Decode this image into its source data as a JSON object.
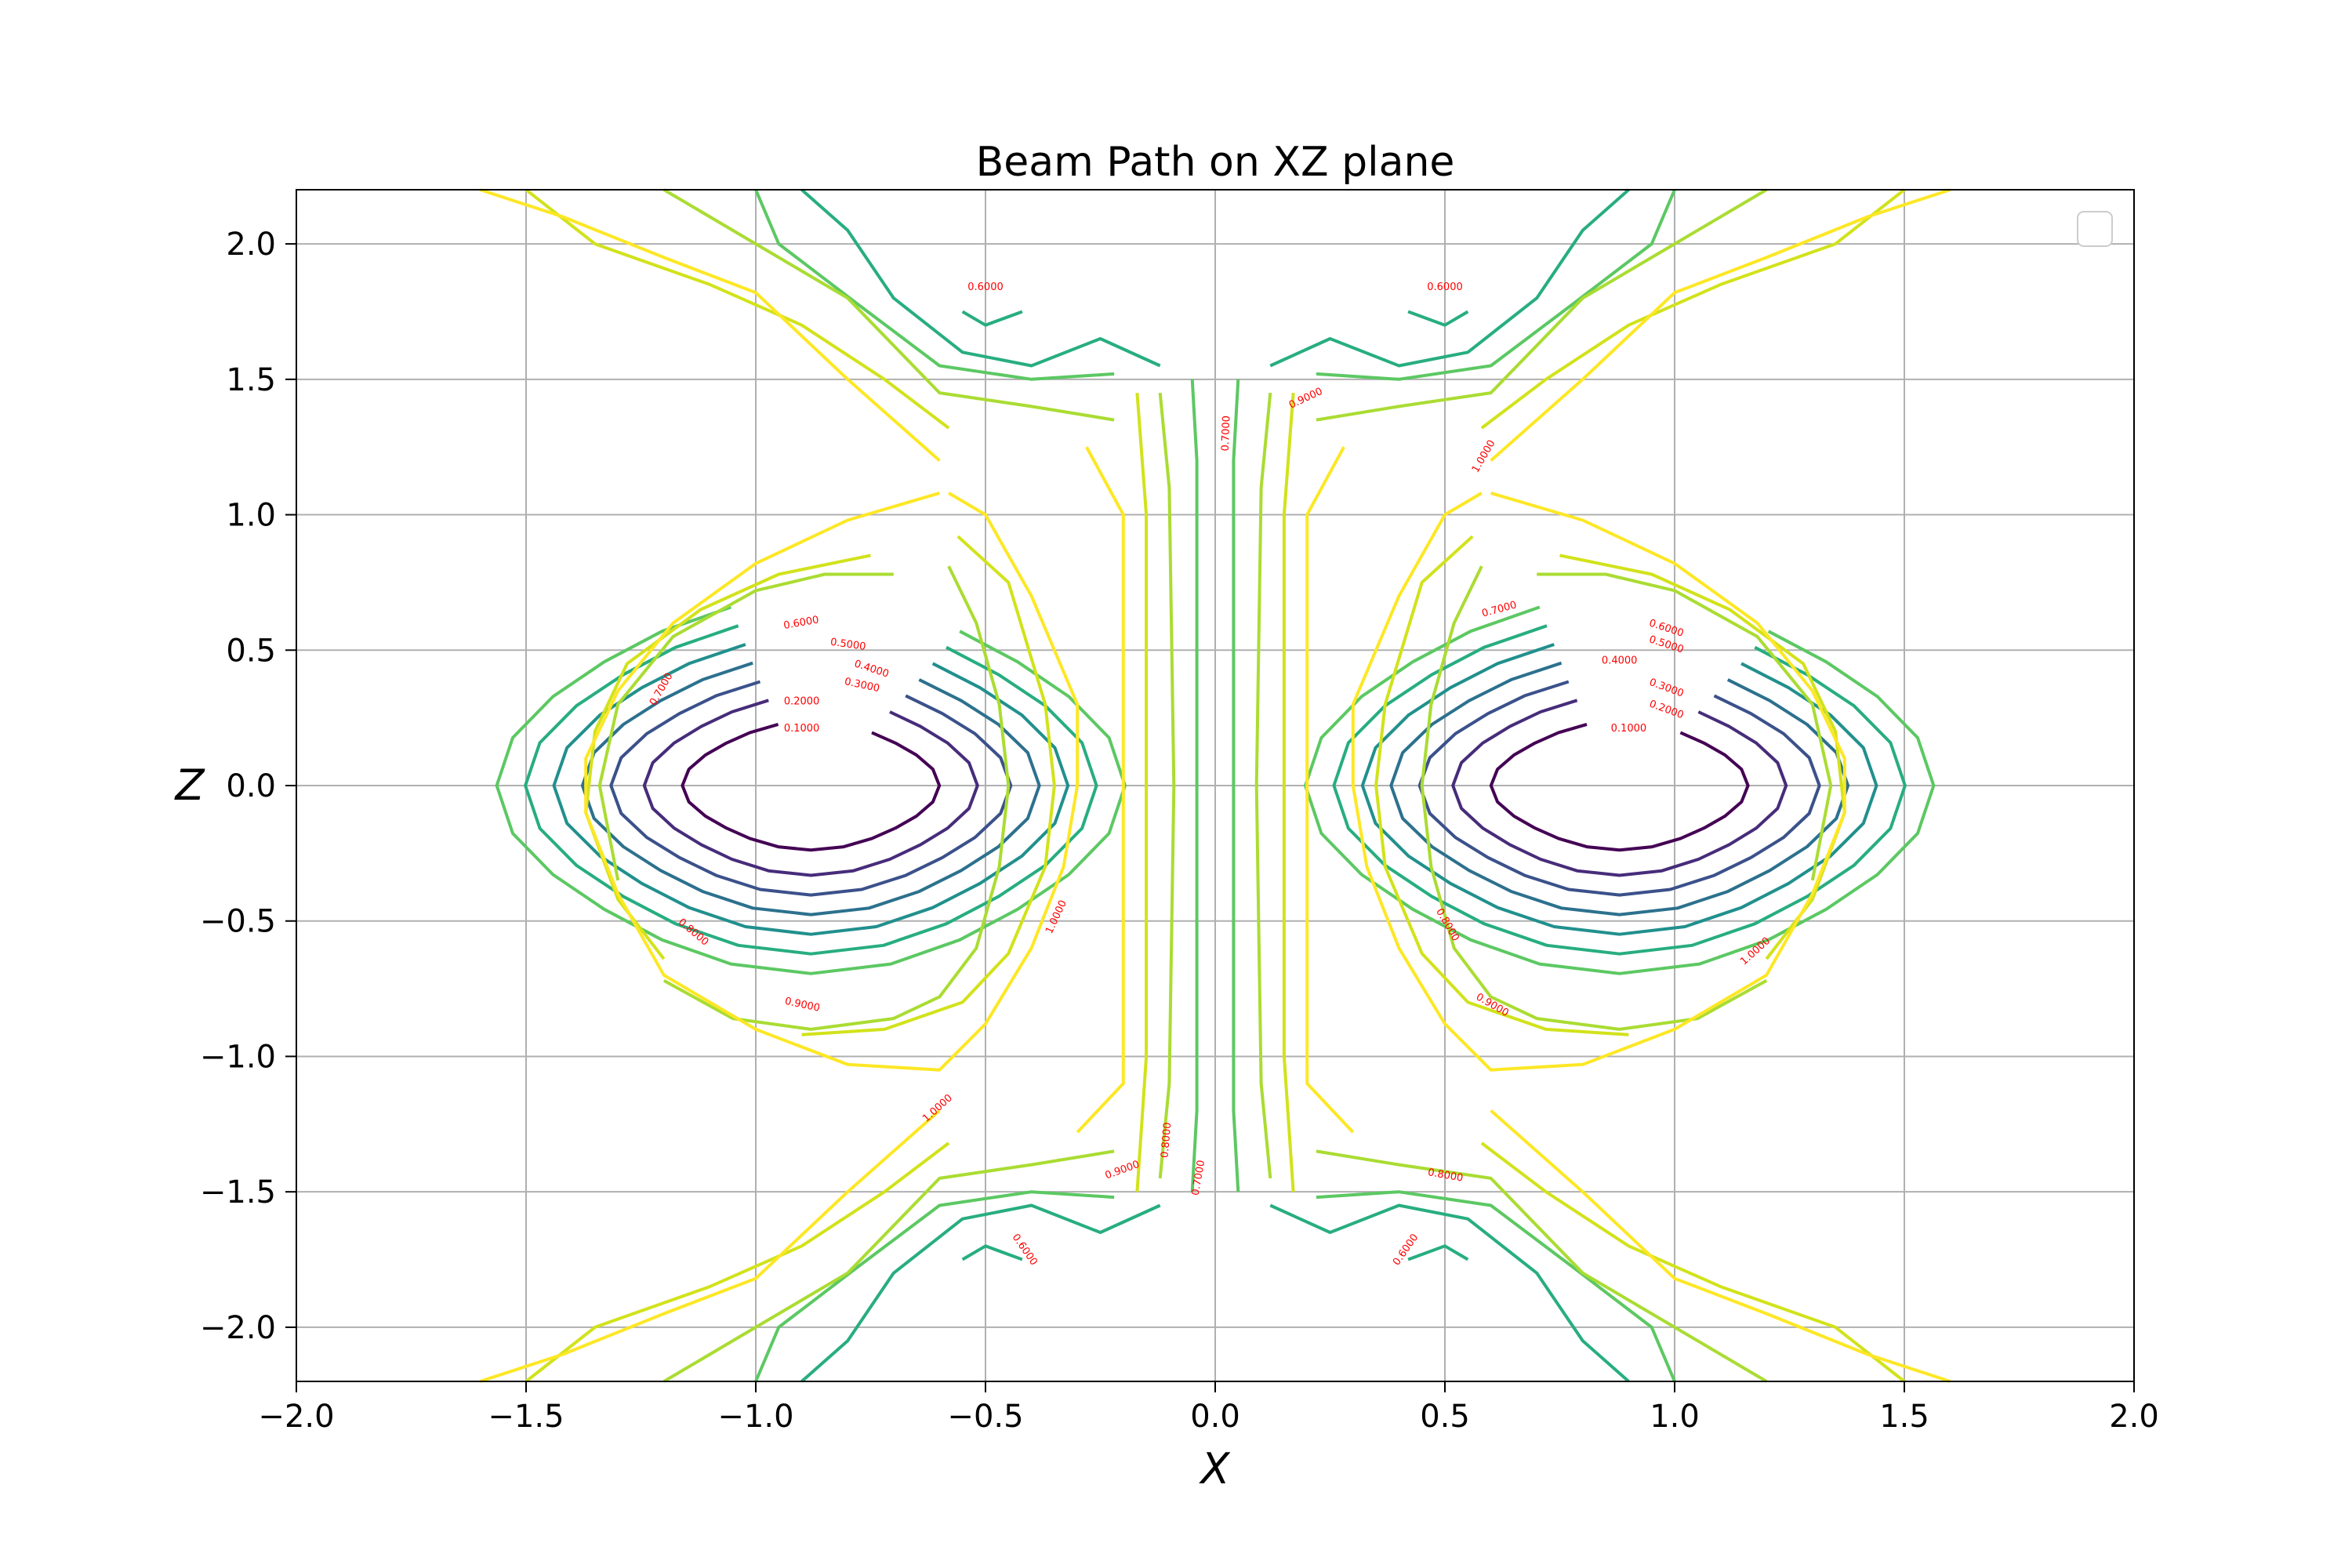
{
  "chart_data": {
    "type": "contour",
    "title": "Beam Path on XZ plane",
    "xlabel": "X",
    "ylabel": "Z",
    "xlim": [
      -2.0,
      2.0
    ],
    "ylim": [
      -2.2,
      2.2
    ],
    "x_ticks": [
      -2.0,
      -1.5,
      -1.0,
      -0.5,
      0.0,
      0.5,
      1.0,
      1.5,
      2.0
    ],
    "y_ticks": [
      -2.0,
      -1.5,
      -1.0,
      -0.5,
      0.0,
      0.5,
      1.0,
      1.5,
      2.0
    ],
    "x_tick_labels": [
      "−2.0",
      "−1.5",
      "−1.0",
      "−0.5",
      "0.0",
      "0.5",
      "1.0",
      "1.5",
      "2.0"
    ],
    "y_tick_labels": [
      "−2.0",
      "−1.5",
      "−1.0",
      "−0.5",
      "0.0",
      "0.5",
      "1.0",
      "1.5",
      "2.0"
    ],
    "grid": true,
    "legend": "top-right (empty)",
    "colormap": "viridis",
    "levels": [
      0.1,
      0.2,
      0.3,
      0.4,
      0.5,
      0.6,
      0.7,
      0.8,
      0.9,
      1.0
    ],
    "level_colors": {
      "0.1": "#440154",
      "0.2": "#472c7a",
      "0.3": "#3b518b",
      "0.4": "#2c718e",
      "0.5": "#21908d",
      "0.6": "#27ad81",
      "0.7": "#5cc863",
      "0.8": "#aadc32",
      "0.9": "#d2e21b",
      "1.0": "#fde725"
    },
    "wells": [
      {
        "center": [
          -0.88,
          0.0
        ]
      },
      {
        "center": [
          0.88,
          0.0
        ]
      }
    ],
    "well_radii": {
      "0.1": [
        0.27,
        0.23
      ],
      "0.2": [
        0.35,
        0.32
      ],
      "0.3": [
        0.42,
        0.39
      ],
      "0.4": [
        0.48,
        0.46
      ],
      "0.5": [
        0.54,
        0.53
      ],
      "0.6": [
        0.6,
        0.6
      ],
      "0.7": [
        0.66,
        0.67
      ]
    },
    "contour_labels": [
      {
        "text": "0.1000",
        "x": -0.9,
        "y": 0.2,
        "angle": 0
      },
      {
        "text": "0.2000",
        "x": -0.9,
        "y": 0.3,
        "angle": 0
      },
      {
        "text": "0.3000",
        "x": -0.77,
        "y": 0.36,
        "angle": 12
      },
      {
        "text": "0.4000",
        "x": -0.75,
        "y": 0.42,
        "angle": 18
      },
      {
        "text": "0.5000",
        "x": -0.8,
        "y": 0.51,
        "angle": 8
      },
      {
        "text": "0.6000",
        "x": -0.9,
        "y": 0.59,
        "angle": -10
      },
      {
        "text": "0.7000",
        "x": -1.2,
        "y": 0.35,
        "angle": -60
      },
      {
        "text": "0.8000",
        "x": -1.14,
        "y": -0.55,
        "angle": 40
      },
      {
        "text": "0.9000",
        "x": -0.9,
        "y": -0.82,
        "angle": 12
      },
      {
        "text": "1.0000",
        "x": -0.34,
        "y": -0.49,
        "angle": -65
      },
      {
        "text": "1.0000",
        "x": -0.6,
        "y": -1.2,
        "angle": -42
      },
      {
        "text": "0.6000",
        "x": -0.5,
        "y": 1.83,
        "angle": 0
      },
      {
        "text": "0.7000",
        "x": 0.03,
        "y": 1.3,
        "angle": -88
      },
      {
        "text": "0.9000",
        "x": 0.2,
        "y": 1.42,
        "angle": -25
      },
      {
        "text": "1.0000",
        "x": 0.59,
        "y": 1.21,
        "angle": -60
      },
      {
        "text": "0.6000",
        "x": 0.5,
        "y": 1.83,
        "angle": 0
      },
      {
        "text": "0.7000",
        "x": 0.62,
        "y": 0.64,
        "angle": -15
      },
      {
        "text": "0.6000",
        "x": 0.98,
        "y": 0.57,
        "angle": 18
      },
      {
        "text": "0.5000",
        "x": 0.98,
        "y": 0.51,
        "angle": 18
      },
      {
        "text": "0.4000",
        "x": 0.88,
        "y": 0.45,
        "angle": 0
      },
      {
        "text": "0.3000",
        "x": 0.98,
        "y": 0.35,
        "angle": 20
      },
      {
        "text": "0.2000",
        "x": 0.98,
        "y": 0.27,
        "angle": 20
      },
      {
        "text": "0.1000",
        "x": 0.9,
        "y": 0.2,
        "angle": 0
      },
      {
        "text": "0.8000",
        "x": 0.5,
        "y": -0.52,
        "angle": 60
      },
      {
        "text": "0.9000",
        "x": 0.6,
        "y": -0.82,
        "angle": 30
      },
      {
        "text": "1.0000",
        "x": 1.18,
        "y": -0.62,
        "angle": -42
      },
      {
        "text": "0.8000",
        "x": -0.1,
        "y": -1.31,
        "angle": -85
      },
      {
        "text": "0.7000",
        "x": -0.03,
        "y": -1.45,
        "angle": -80
      },
      {
        "text": "0.9000",
        "x": -0.2,
        "y": -1.43,
        "angle": -20
      },
      {
        "text": "0.6000",
        "x": -0.42,
        "y": -1.72,
        "angle": 55
      },
      {
        "text": "0.8000",
        "x": 0.5,
        "y": -1.45,
        "angle": 10
      },
      {
        "text": "0.6000",
        "x": 0.42,
        "y": -1.72,
        "angle": -55
      }
    ]
  }
}
